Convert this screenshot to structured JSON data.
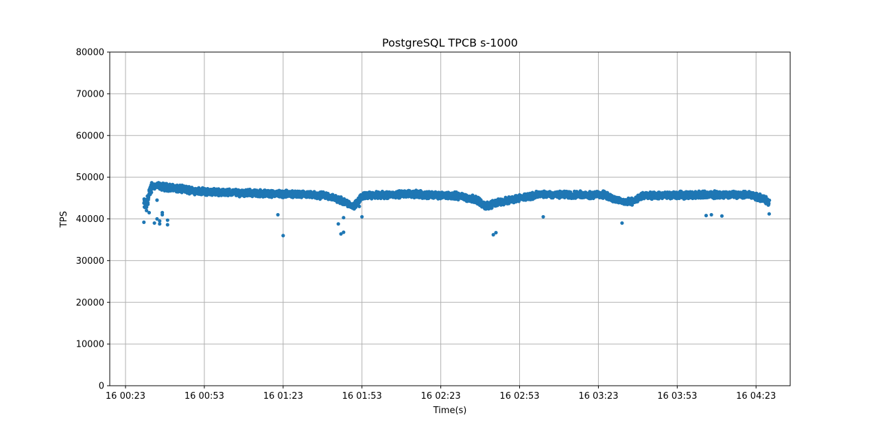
{
  "chart_data": {
    "type": "scatter",
    "title": "PostgreSQL TPCB s-1000",
    "xlabel": "Time(s)",
    "ylabel": "TPS",
    "ylim": [
      0,
      80000
    ],
    "xlim": [
      "16 00:17",
      "16 04:36"
    ],
    "grid": true,
    "marker_color": "#1f77b4",
    "x_ticks": [
      "16 00:23",
      "16 00:53",
      "16 01:23",
      "16 01:53",
      "16 02:23",
      "16 02:53",
      "16 03:23",
      "16 03:53",
      "16 04:23"
    ],
    "y_ticks": [
      0,
      10000,
      20000,
      30000,
      40000,
      50000,
      60000,
      70000,
      80000
    ],
    "trend": {
      "x": [
        "16 00:30",
        "16 00:31",
        "16 00:33",
        "16 00:40",
        "16 00:53",
        "16 01:10",
        "16 01:25",
        "16 01:40",
        "16 01:47",
        "16 01:50",
        "16 01:53",
        "16 02:10",
        "16 02:30",
        "16 02:37",
        "16 02:40",
        "16 02:45",
        "16 03:00",
        "16 03:25",
        "16 03:30",
        "16 03:35",
        "16 03:40",
        "16 04:00",
        "16 04:20",
        "16 04:25",
        "16 04:28"
      ],
      "y": [
        43500,
        43500,
        48000,
        47500,
        46500,
        46200,
        46000,
        45500,
        44000,
        43000,
        45500,
        46000,
        45500,
        44500,
        43000,
        44000,
        45800,
        45800,
        44500,
        44000,
        45500,
        45800,
        45800,
        45000,
        44000
      ]
    },
    "outliers": {
      "x": [
        "16 00:30",
        "16 00:31",
        "16 00:32",
        "16 00:34",
        "16 00:35",
        "16 00:35",
        "16 00:36",
        "16 00:36",
        "16 00:37",
        "16 00:37",
        "16 00:39",
        "16 00:39",
        "16 01:21",
        "16 01:23",
        "16 01:44",
        "16 01:45",
        "16 01:46",
        "16 01:46",
        "16 01:52",
        "16 01:53",
        "16 02:43",
        "16 02:44",
        "16 03:02",
        "16 03:32",
        "16 04:04",
        "16 04:06",
        "16 04:10",
        "16 04:28"
      ],
      "y": [
        39200,
        42000,
        41500,
        39000,
        40000,
        44500,
        39500,
        38800,
        41000,
        41500,
        38600,
        39700,
        41000,
        36000,
        38800,
        36400,
        36800,
        40300,
        43000,
        40500,
        36200,
        36700,
        40500,
        39000,
        40800,
        41000,
        40700,
        41200
      ]
    }
  }
}
